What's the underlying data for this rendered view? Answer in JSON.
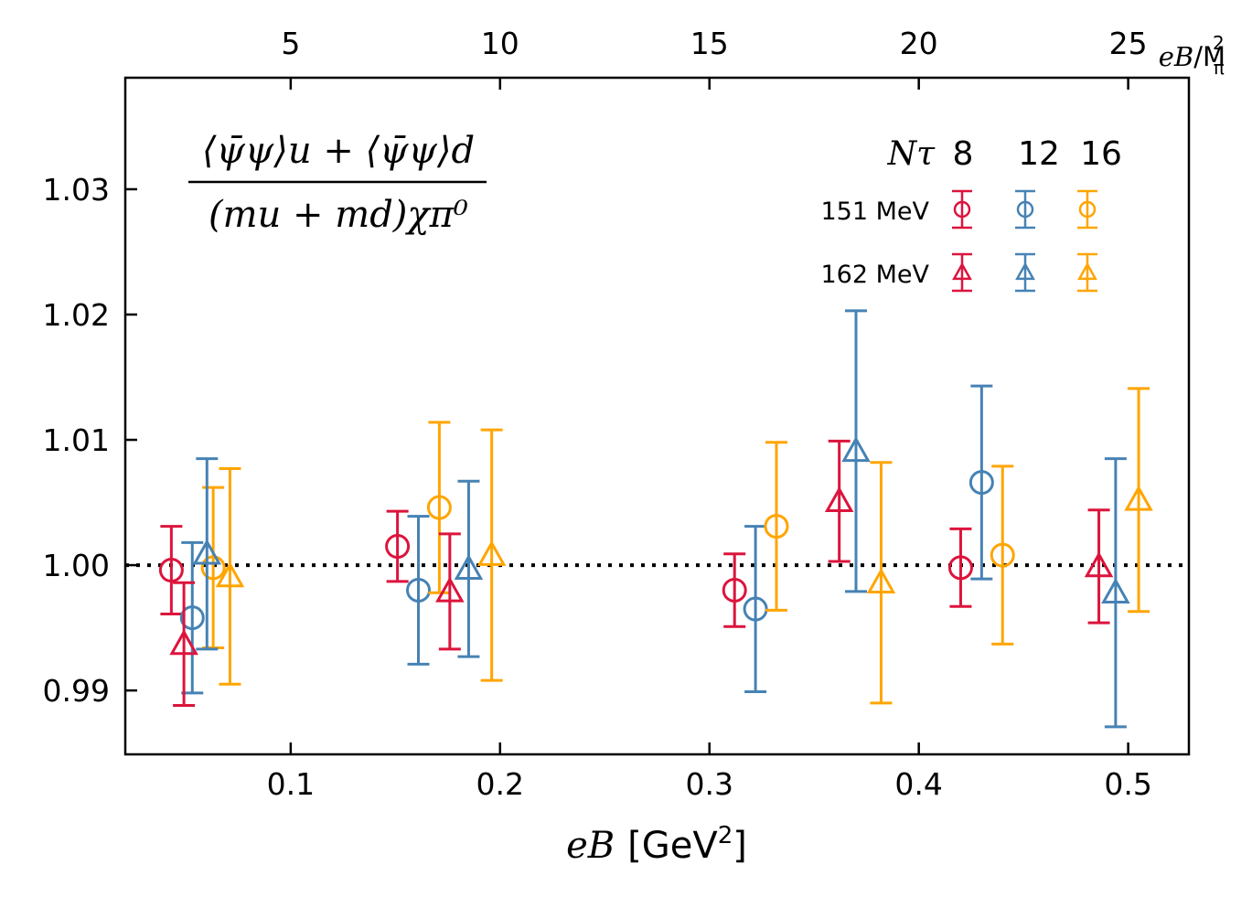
{
  "chart_data": {
    "type": "scatter",
    "title": "",
    "formula": {
      "numerator": "⟨ψ̄ψ⟩u + ⟨ψ̄ψ⟩d",
      "denominator": "(mu + md)χπ⁰"
    },
    "xlabel": "eB [GeV²]",
    "xlabel_parts": {
      "italic": "eB",
      "rest": "[GeV",
      "sup": "2",
      "close": "]"
    },
    "x2label": "eB/Mπ²",
    "x2label_parts": {
      "italic": "eB",
      "rest": "/M",
      "sub": "π",
      "sup": "2"
    },
    "xlim": [
      0.021,
      0.529
    ],
    "ylim": [
      0.9849,
      1.0389
    ],
    "x_ticks": [
      0.1,
      0.2,
      0.3,
      0.4,
      0.5
    ],
    "x_tick_labels": [
      "0.1",
      "0.2",
      "0.3",
      "0.4",
      "0.5"
    ],
    "x2_ticks": [
      5,
      10,
      15,
      20,
      25
    ],
    "x2_tick_labels": [
      "5",
      "10",
      "15",
      "20",
      "25"
    ],
    "x2_per_x": 50.0,
    "y_ticks": [
      0.99,
      1.0,
      1.01,
      1.02,
      1.03
    ],
    "y_tick_labels": [
      "0.99",
      "1.00",
      "1.01",
      "1.02",
      "1.03"
    ],
    "reference_line": {
      "y": 1.0,
      "style": "dotted",
      "color": "#000000"
    },
    "legend": {
      "header_label": "Nτ",
      "nt_labels": [
        "8",
        "12",
        "16"
      ],
      "row_labels": [
        "151 MeV",
        "162 MeV"
      ],
      "position": "top-right"
    },
    "colors": {
      "8": "#dc143c",
      "12": "#4682b4",
      "16": "#ffa500"
    },
    "series": [
      {
        "name": "Nτ=8, 151 MeV",
        "nt": "8",
        "T": "151 MeV",
        "marker": "circle",
        "x": [
          0.043,
          0.151,
          0.312,
          0.42
        ],
        "y": [
          0.9996,
          1.0015,
          0.998,
          0.9998
        ],
        "err": [
          0.0035,
          0.0028,
          0.0029,
          0.0031
        ]
      },
      {
        "name": "Nτ=12, 151 MeV",
        "nt": "12",
        "T": "151 MeV",
        "marker": "circle",
        "x": [
          0.053,
          0.161,
          0.322,
          0.43
        ],
        "y": [
          0.9958,
          0.998,
          0.9965,
          1.0066
        ],
        "err": [
          0.006,
          0.0059,
          0.0066,
          0.0077
        ]
      },
      {
        "name": "Nτ=16, 151 MeV",
        "nt": "16",
        "T": "151 MeV",
        "marker": "circle",
        "x": [
          0.063,
          0.171,
          0.332,
          0.44
        ],
        "y": [
          0.9998,
          1.0046,
          1.0031,
          1.0008
        ],
        "err": [
          0.0064,
          0.0068,
          0.0067,
          0.0071
        ]
      },
      {
        "name": "Nτ=8, 162 MeV",
        "nt": "8",
        "T": "162 MeV",
        "marker": "triangle",
        "x": [
          0.049,
          0.176,
          0.362,
          0.486
        ],
        "y": [
          0.9937,
          0.9979,
          1.0051,
          0.9999
        ],
        "err": [
          0.0049,
          0.0046,
          0.0048,
          0.0045
        ]
      },
      {
        "name": "Nτ=12, 162 MeV",
        "nt": "12",
        "T": "162 MeV",
        "marker": "triangle",
        "x": [
          0.06,
          0.185,
          0.37,
          0.494
        ],
        "y": [
          1.0009,
          0.9997,
          1.0091,
          0.9978
        ],
        "err": [
          0.0076,
          0.007,
          0.0112,
          0.0107
        ]
      },
      {
        "name": "Nτ=16, 162 MeV",
        "nt": "16",
        "T": "162 MeV",
        "marker": "triangle",
        "x": [
          0.071,
          0.196,
          0.382,
          0.505
        ],
        "y": [
          0.9991,
          1.0008,
          0.9986,
          1.0052
        ],
        "err": [
          0.0086,
          0.01,
          0.0096,
          0.0089
        ]
      }
    ]
  }
}
